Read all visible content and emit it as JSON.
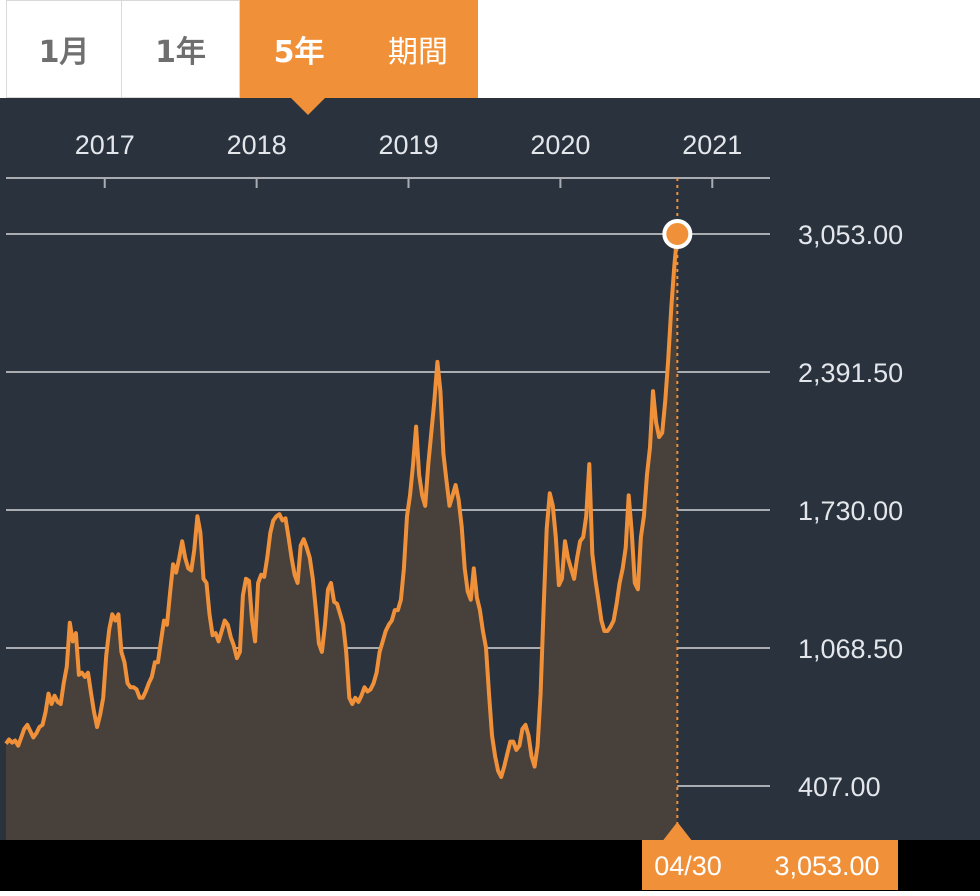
{
  "tabs": [
    {
      "label": "1月",
      "active": false
    },
    {
      "label": "1年",
      "active": false
    },
    {
      "label": "5年",
      "active": true
    },
    {
      "label": "期間",
      "active": false
    }
  ],
  "colors": {
    "background": "#2a323d",
    "line": "#f0913a",
    "area": "#48403a",
    "grid": "#a9adb2",
    "text": "#e3e6ea",
    "footer": "#000000"
  },
  "chart_data": {
    "type": "area",
    "x_tick_labels": [
      "2017",
      "2018",
      "2019",
      "2020",
      "2021"
    ],
    "y_tick_labels": [
      "3,053.00",
      "2,391.50",
      "1,730.00",
      "1,068.50",
      "407.00"
    ],
    "y_ticks": [
      3053,
      2391.5,
      1730,
      1068.5,
      407
    ],
    "xlim": [
      2016.35,
      2021.38
    ],
    "ylim": [
      150,
      3330
    ],
    "grid": true,
    "last_point": {
      "date": "04/30",
      "value": 3053.0,
      "label": "3,053.00"
    },
    "series": [
      {
        "values": [
          [
            2016.35,
            610
          ],
          [
            2016.37,
            630
          ],
          [
            2016.39,
            615
          ],
          [
            2016.41,
            625
          ],
          [
            2016.43,
            600
          ],
          [
            2016.45,
            640
          ],
          [
            2016.47,
            680
          ],
          [
            2016.49,
            700
          ],
          [
            2016.51,
            670
          ],
          [
            2016.53,
            640
          ],
          [
            2016.55,
            660
          ],
          [
            2016.57,
            690
          ],
          [
            2016.59,
            700
          ],
          [
            2016.61,
            760
          ],
          [
            2016.63,
            850
          ],
          [
            2016.65,
            800
          ],
          [
            2016.67,
            840
          ],
          [
            2016.69,
            810
          ],
          [
            2016.71,
            800
          ],
          [
            2016.73,
            900
          ],
          [
            2016.75,
            980
          ],
          [
            2016.77,
            1190
          ],
          [
            2016.79,
            1100
          ],
          [
            2016.81,
            1140
          ],
          [
            2016.83,
            940
          ],
          [
            2016.85,
            950
          ],
          [
            2016.87,
            930
          ],
          [
            2016.89,
            950
          ],
          [
            2016.91,
            850
          ],
          [
            2016.93,
            760
          ],
          [
            2016.95,
            690
          ],
          [
            2016.97,
            750
          ],
          [
            2016.99,
            830
          ],
          [
            2017.01,
            1030
          ],
          [
            2017.03,
            1160
          ],
          [
            2017.05,
            1230
          ],
          [
            2017.07,
            1200
          ],
          [
            2017.09,
            1230
          ],
          [
            2017.11,
            1050
          ],
          [
            2017.13,
            1000
          ],
          [
            2017.15,
            900
          ],
          [
            2017.17,
            880
          ],
          [
            2017.19,
            880
          ],
          [
            2017.21,
            870
          ],
          [
            2017.23,
            830
          ],
          [
            2017.25,
            830
          ],
          [
            2017.27,
            860
          ],
          [
            2017.29,
            900
          ],
          [
            2017.31,
            930
          ],
          [
            2017.33,
            1000
          ],
          [
            2017.35,
            1000
          ],
          [
            2017.37,
            1100
          ],
          [
            2017.39,
            1200
          ],
          [
            2017.41,
            1180
          ],
          [
            2017.43,
            1330
          ],
          [
            2017.45,
            1470
          ],
          [
            2017.47,
            1430
          ],
          [
            2017.49,
            1500
          ],
          [
            2017.51,
            1580
          ],
          [
            2017.53,
            1500
          ],
          [
            2017.55,
            1450
          ],
          [
            2017.57,
            1440
          ],
          [
            2017.59,
            1540
          ],
          [
            2017.61,
            1700
          ],
          [
            2017.63,
            1620
          ],
          [
            2017.65,
            1400
          ],
          [
            2017.67,
            1380
          ],
          [
            2017.69,
            1230
          ],
          [
            2017.71,
            1130
          ],
          [
            2017.73,
            1140
          ],
          [
            2017.75,
            1100
          ],
          [
            2017.77,
            1150
          ],
          [
            2017.79,
            1200
          ],
          [
            2017.81,
            1180
          ],
          [
            2017.83,
            1120
          ],
          [
            2017.85,
            1080
          ],
          [
            2017.87,
            1020
          ],
          [
            2017.89,
            1050
          ],
          [
            2017.91,
            1320
          ],
          [
            2017.93,
            1400
          ],
          [
            2017.95,
            1390
          ],
          [
            2017.97,
            1200
          ],
          [
            2017.99,
            1100
          ],
          [
            2018.01,
            1380
          ],
          [
            2018.03,
            1420
          ],
          [
            2018.05,
            1410
          ],
          [
            2018.07,
            1500
          ],
          [
            2018.09,
            1620
          ],
          [
            2018.11,
            1680
          ],
          [
            2018.13,
            1700
          ],
          [
            2018.15,
            1710
          ],
          [
            2018.17,
            1680
          ],
          [
            2018.19,
            1690
          ],
          [
            2018.21,
            1600
          ],
          [
            2018.23,
            1500
          ],
          [
            2018.25,
            1420
          ],
          [
            2018.27,
            1380
          ],
          [
            2018.29,
            1560
          ],
          [
            2018.31,
            1590
          ],
          [
            2018.33,
            1550
          ],
          [
            2018.35,
            1500
          ],
          [
            2018.37,
            1400
          ],
          [
            2018.39,
            1250
          ],
          [
            2018.41,
            1090
          ],
          [
            2018.43,
            1050
          ],
          [
            2018.45,
            1180
          ],
          [
            2018.47,
            1350
          ],
          [
            2018.49,
            1380
          ],
          [
            2018.51,
            1290
          ],
          [
            2018.53,
            1280
          ],
          [
            2018.55,
            1230
          ],
          [
            2018.57,
            1180
          ],
          [
            2018.59,
            1050
          ],
          [
            2018.61,
            830
          ],
          [
            2018.63,
            800
          ],
          [
            2018.65,
            830
          ],
          [
            2018.67,
            810
          ],
          [
            2018.69,
            840
          ],
          [
            2018.71,
            880
          ],
          [
            2018.73,
            860
          ],
          [
            2018.75,
            870
          ],
          [
            2018.77,
            900
          ],
          [
            2018.79,
            950
          ],
          [
            2018.81,
            1050
          ],
          [
            2018.83,
            1100
          ],
          [
            2018.85,
            1150
          ],
          [
            2018.87,
            1180
          ],
          [
            2018.89,
            1200
          ],
          [
            2018.91,
            1250
          ],
          [
            2018.93,
            1250
          ],
          [
            2018.95,
            1300
          ],
          [
            2018.97,
            1450
          ],
          [
            2018.99,
            1700
          ],
          [
            2019.01,
            1800
          ],
          [
            2019.03,
            1950
          ],
          [
            2019.05,
            2130
          ],
          [
            2019.07,
            1900
          ],
          [
            2019.09,
            1800
          ],
          [
            2019.11,
            1750
          ],
          [
            2019.13,
            1950
          ],
          [
            2019.15,
            2100
          ],
          [
            2019.17,
            2250
          ],
          [
            2019.19,
            2440
          ],
          [
            2019.21,
            2300
          ],
          [
            2019.23,
            2000
          ],
          [
            2019.25,
            1870
          ],
          [
            2019.27,
            1750
          ],
          [
            2019.29,
            1800
          ],
          [
            2019.31,
            1850
          ],
          [
            2019.33,
            1780
          ],
          [
            2019.35,
            1650
          ],
          [
            2019.37,
            1450
          ],
          [
            2019.39,
            1340
          ],
          [
            2019.41,
            1300
          ],
          [
            2019.43,
            1450
          ],
          [
            2019.45,
            1310
          ],
          [
            2019.47,
            1250
          ],
          [
            2019.49,
            1150
          ],
          [
            2019.51,
            1070
          ],
          [
            2019.53,
            850
          ],
          [
            2019.55,
            650
          ],
          [
            2019.57,
            550
          ],
          [
            2019.59,
            480
          ],
          [
            2019.61,
            450
          ],
          [
            2019.63,
            500
          ],
          [
            2019.65,
            560
          ],
          [
            2019.67,
            620
          ],
          [
            2019.69,
            620
          ],
          [
            2019.71,
            580
          ],
          [
            2019.73,
            600
          ],
          [
            2019.75,
            680
          ],
          [
            2019.77,
            700
          ],
          [
            2019.79,
            650
          ],
          [
            2019.81,
            550
          ],
          [
            2019.83,
            500
          ],
          [
            2019.85,
            600
          ],
          [
            2019.87,
            850
          ],
          [
            2019.89,
            1270
          ],
          [
            2019.91,
            1640
          ],
          [
            2019.93,
            1810
          ],
          [
            2019.95,
            1750
          ],
          [
            2019.97,
            1600
          ],
          [
            2019.99,
            1370
          ],
          [
            2020.01,
            1400
          ],
          [
            2020.03,
            1580
          ],
          [
            2020.05,
            1500
          ],
          [
            2020.07,
            1450
          ],
          [
            2020.09,
            1400
          ],
          [
            2020.11,
            1500
          ],
          [
            2020.13,
            1580
          ],
          [
            2020.15,
            1600
          ],
          [
            2020.17,
            1700
          ],
          [
            2020.19,
            1950
          ],
          [
            2020.21,
            1520
          ],
          [
            2020.23,
            1400
          ],
          [
            2020.25,
            1300
          ],
          [
            2020.27,
            1200
          ],
          [
            2020.29,
            1150
          ],
          [
            2020.31,
            1150
          ],
          [
            2020.33,
            1170
          ],
          [
            2020.35,
            1200
          ],
          [
            2020.37,
            1280
          ],
          [
            2020.39,
            1380
          ],
          [
            2020.41,
            1450
          ],
          [
            2020.43,
            1550
          ],
          [
            2020.45,
            1800
          ],
          [
            2020.47,
            1620
          ],
          [
            2020.49,
            1380
          ],
          [
            2020.51,
            1350
          ],
          [
            2020.53,
            1600
          ],
          [
            2020.55,
            1700
          ],
          [
            2020.57,
            1900
          ],
          [
            2020.59,
            2030
          ],
          [
            2020.61,
            2300
          ],
          [
            2020.63,
            2150
          ],
          [
            2020.65,
            2080
          ],
          [
            2020.67,
            2100
          ],
          [
            2020.69,
            2250
          ],
          [
            2020.71,
            2450
          ],
          [
            2020.73,
            2700
          ],
          [
            2020.75,
            2900
          ],
          [
            2020.77,
            3053
          ]
        ]
      }
    ]
  }
}
